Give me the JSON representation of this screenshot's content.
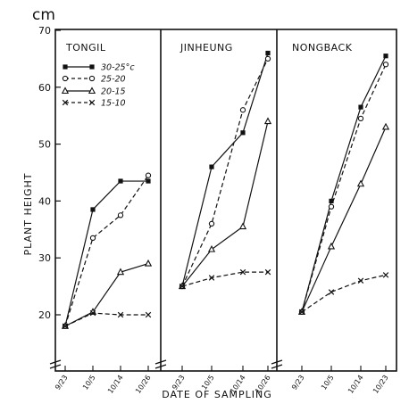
{
  "chart_data": {
    "type": "line",
    "y_unit": "cm",
    "ylabel": "PLANT HEIGHT",
    "xlabel": "DATE OF SAMPLING",
    "ylim": [
      15,
      70
    ],
    "yticks": [
      20,
      30,
      40,
      50,
      60,
      70
    ],
    "grid": false,
    "legend": {
      "placement": "top-left, first panel",
      "entries": [
        {
          "label": "30-25°c",
          "marker": "filled-square",
          "line": "solid"
        },
        {
          "label": "25-20",
          "marker": "open-circle",
          "line": "dashed"
        },
        {
          "label": "20-15",
          "marker": "triangle",
          "line": "solid"
        },
        {
          "label": "15-10",
          "marker": "x",
          "line": "dashed"
        }
      ]
    },
    "panels": [
      {
        "title": "TONGIL",
        "categories": [
          "9/23",
          "10/5",
          "10/14",
          "10/26"
        ],
        "series": [
          {
            "name": "30-25°c",
            "values": [
              18,
              38.5,
              43.5,
              43.5
            ]
          },
          {
            "name": "25-20",
            "values": [
              18,
              33.5,
              37.5,
              44.5
            ]
          },
          {
            "name": "20-15",
            "values": [
              18,
              20.5,
              27.5,
              29
            ]
          },
          {
            "name": "15-10",
            "values": [
              18,
              20.3,
              20,
              20
            ]
          }
        ]
      },
      {
        "title": "JINHEUNG",
        "categories": [
          "9/23",
          "10/5",
          "10/14",
          "10/26"
        ],
        "series": [
          {
            "name": "30-25°c",
            "values": [
              25,
              46,
              52,
              66
            ]
          },
          {
            "name": "25-20",
            "values": [
              25,
              36,
              56,
              65
            ]
          },
          {
            "name": "20-15",
            "values": [
              25,
              31.5,
              35.5,
              54
            ]
          },
          {
            "name": "15-10",
            "values": [
              25,
              26.5,
              27.5,
              27.5
            ]
          }
        ]
      },
      {
        "title": "NONGBACK",
        "categories": [
          "9/23",
          "10/5",
          "10/14",
          "10/23"
        ],
        "series": [
          {
            "name": "30-25°c",
            "values": [
              20.5,
              40,
              56.5,
              65.5
            ]
          },
          {
            "name": "25-20",
            "values": [
              20.5,
              39,
              54.5,
              64
            ]
          },
          {
            "name": "20-15",
            "values": [
              20.5,
              32,
              43,
              53
            ]
          },
          {
            "name": "15-10",
            "values": [
              20.5,
              24,
              26,
              27
            ]
          }
        ]
      }
    ]
  }
}
